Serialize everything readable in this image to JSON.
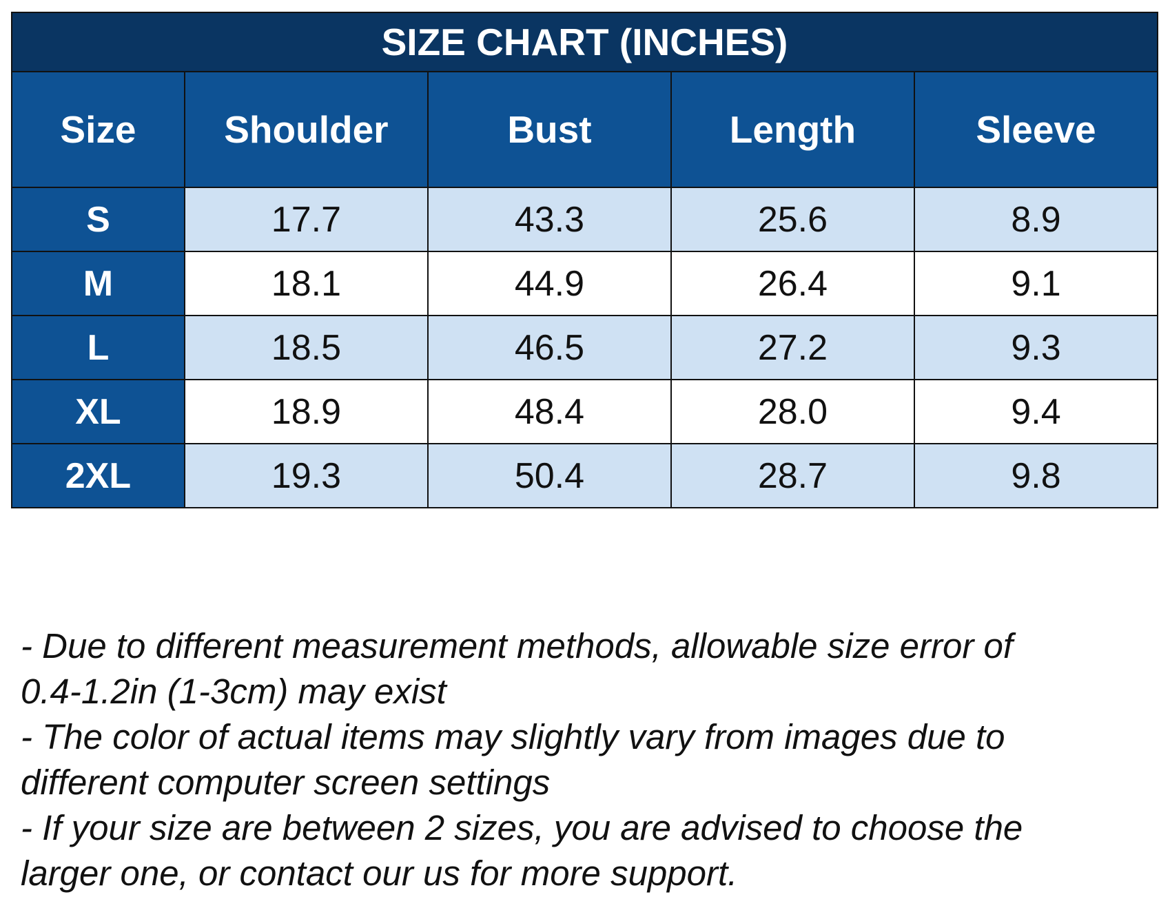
{
  "colors": {
    "title_bg": "#0a3562",
    "header_bg": "#0e5294",
    "stripe_bg": "#cfe1f3",
    "white_bg": "#ffffff",
    "border": "#111111"
  },
  "chart_data": {
    "type": "table",
    "title": "SIZE CHART (INCHES)",
    "columns": [
      "Size",
      "Shoulder",
      "Bust",
      "Length",
      "Sleeve"
    ],
    "rows": [
      {
        "size": "S",
        "shoulder": "17.7",
        "bust": "43.3",
        "length": "25.6",
        "sleeve": "8.9"
      },
      {
        "size": "M",
        "shoulder": "18.1",
        "bust": "44.9",
        "length": "26.4",
        "sleeve": "9.1"
      },
      {
        "size": "L",
        "shoulder": "18.5",
        "bust": "46.5",
        "length": "27.2",
        "sleeve": "9.3"
      },
      {
        "size": "XL",
        "shoulder": "18.9",
        "bust": "48.4",
        "length": "28.0",
        "sleeve": "9.4"
      },
      {
        "size": "2XL",
        "shoulder": "19.3",
        "bust": "50.4",
        "length": "28.7",
        "sleeve": "9.8"
      }
    ]
  },
  "notes": [
    "- Due to different measurement methods, allowable size error of",
    "0.4-1.2in (1-3cm) may exist",
    "- The color of actual items may slightly vary from images due to",
    "different computer screen settings",
    "- If your size are between 2 sizes, you are advised to choose the",
    "larger one, or contact our us for more support."
  ]
}
